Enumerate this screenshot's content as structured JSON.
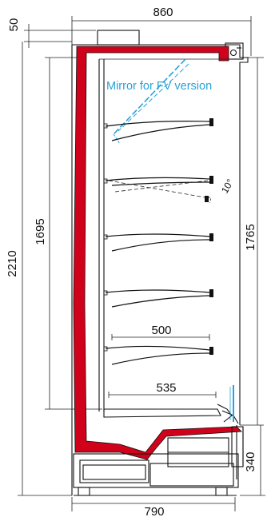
{
  "dimensions": {
    "top_width": "860",
    "top_offset": "50",
    "total_height": "2210",
    "display_height": "1695",
    "front_height": "1765",
    "base_height": "340",
    "base_depth": "790",
    "shelf_depth_upper": "500",
    "shelf_depth_lower": "535",
    "shelf_tilt": "10°"
  },
  "annotations": {
    "mirror_note": "Mirror for FV version"
  },
  "colors": {
    "insulation": "#d0021b",
    "mirror": "#2aa3d8",
    "line": "#111111"
  }
}
